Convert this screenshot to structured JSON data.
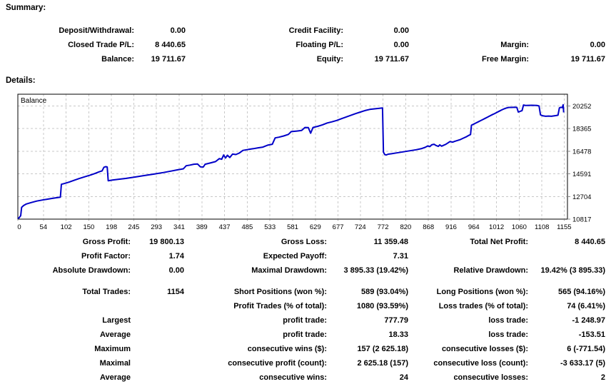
{
  "summary": {
    "heading": "Summary:",
    "rows": [
      {
        "c1l": "Deposit/Withdrawal:",
        "c1v": "0.00",
        "c2l": "Credit Facility:",
        "c2v": "0.00",
        "c3l": "",
        "c3v": ""
      },
      {
        "c1l": "Closed Trade P/L:",
        "c1v": "8 440.65",
        "c2l": "Floating P/L:",
        "c2v": "0.00",
        "c3l": "Margin:",
        "c3v": "0.00"
      },
      {
        "c1l": "Balance:",
        "c1v": "19 711.67",
        "c2l": "Equity:",
        "c2v": "19 711.67",
        "c3l": "Free Margin:",
        "c3v": "19 711.67"
      }
    ]
  },
  "details": {
    "heading": "Details:",
    "stats1": [
      {
        "c1l": "Gross Profit:",
        "c1v": "19 800.13",
        "c2l": "Gross Loss:",
        "c2v": "11 359.48",
        "c3l": "Total Net Profit:",
        "c3v": "8 440.65"
      },
      {
        "c1l": "Profit Factor:",
        "c1v": "1.74",
        "c2l": "Expected Payoff:",
        "c2v": "7.31",
        "c3l": "",
        "c3v": ""
      },
      {
        "c1l": "Absolute Drawdown:",
        "c1v": "0.00",
        "c2l": "Maximal Drawdown:",
        "c2v": "3 895.33 (19.42%)",
        "c3l": "Relative Drawdown:",
        "c3v": "19.42% (3 895.33)"
      }
    ],
    "stats2": [
      {
        "c1l": "Total Trades:",
        "c1v": "1154",
        "c2l": "Short Positions (won %):",
        "c2v": "589 (93.04%)",
        "c3l": "Long Positions (won %):",
        "c3v": "565 (94.16%)"
      },
      {
        "c1l": "",
        "c1v": "",
        "c2l": "Profit Trades (% of total):",
        "c2v": "1080 (93.59%)",
        "c3l": "Loss trades (% of total):",
        "c3v": "74 (6.41%)"
      },
      {
        "c1l": "Largest",
        "c1v": "",
        "c2l": "profit trade:",
        "c2v": "777.79",
        "c3l": "loss trade:",
        "c3v": "-1 248.97"
      },
      {
        "c1l": "Average",
        "c1v": "",
        "c2l": "profit trade:",
        "c2v": "18.33",
        "c3l": "loss trade:",
        "c3v": "-153.51"
      },
      {
        "c1l": "Maximum",
        "c1v": "",
        "c2l": "consecutive wins ($):",
        "c2v": "157 (2 625.18)",
        "c3l": "consecutive losses ($):",
        "c3v": "6 (-771.54)"
      },
      {
        "c1l": "Maximal",
        "c1v": "",
        "c2l": "consecutive profit (count):",
        "c2v": "2 625.18 (157)",
        "c3l": "consecutive loss (count):",
        "c3v": "-3 633.17 (5)"
      },
      {
        "c1l": "Average",
        "c1v": "",
        "c2l": "consecutive wins:",
        "c2v": "24",
        "c3l": "consecutive losses:",
        "c3v": "2"
      }
    ]
  },
  "chart_data": {
    "type": "line",
    "title": "Balance",
    "legend_label": "Balance",
    "xlabel": "",
    "ylabel": "",
    "xlim": [
      0,
      1162
    ],
    "ylim": [
      10817,
      21230
    ],
    "x_ticks": [
      0,
      54,
      102,
      150,
      198,
      245,
      293,
      341,
      389,
      437,
      485,
      533,
      581,
      629,
      677,
      724,
      772,
      820,
      868,
      916,
      964,
      1012,
      1060,
      1108,
      1155
    ],
    "y_ticks": [
      20252,
      18365,
      16478,
      14591,
      12704,
      10817
    ],
    "grid": "dashed",
    "colors": {
      "line": "#0000C8",
      "grid": "#c8c8c8",
      "border": "#000000",
      "text": "#000000"
    },
    "series": [
      {
        "name": "Balance",
        "points": [
          [
            0,
            10850
          ],
          [
            3,
            10950
          ],
          [
            6,
            11100
          ],
          [
            8,
            11800
          ],
          [
            12,
            11950
          ],
          [
            18,
            12080
          ],
          [
            28,
            12200
          ],
          [
            40,
            12320
          ],
          [
            52,
            12410
          ],
          [
            62,
            12480
          ],
          [
            72,
            12540
          ],
          [
            82,
            12600
          ],
          [
            90,
            12650
          ],
          [
            92,
            13720
          ],
          [
            98,
            13780
          ],
          [
            108,
            13900
          ],
          [
            118,
            14040
          ],
          [
            130,
            14200
          ],
          [
            142,
            14350
          ],
          [
            152,
            14470
          ],
          [
            163,
            14620
          ],
          [
            172,
            14760
          ],
          [
            178,
            14840
          ],
          [
            182,
            15140
          ],
          [
            186,
            15190
          ],
          [
            189,
            15160
          ],
          [
            191,
            14020
          ],
          [
            200,
            14070
          ],
          [
            212,
            14130
          ],
          [
            228,
            14210
          ],
          [
            248,
            14330
          ],
          [
            268,
            14450
          ],
          [
            288,
            14570
          ],
          [
            308,
            14700
          ],
          [
            324,
            14820
          ],
          [
            338,
            14930
          ],
          [
            350,
            15010
          ],
          [
            356,
            15270
          ],
          [
            364,
            15320
          ],
          [
            372,
            15390
          ],
          [
            380,
            15410
          ],
          [
            386,
            15170
          ],
          [
            392,
            15160
          ],
          [
            396,
            15390
          ],
          [
            408,
            15510
          ],
          [
            418,
            15610
          ],
          [
            426,
            15860
          ],
          [
            431,
            15810
          ],
          [
            435,
            16160
          ],
          [
            439,
            15910
          ],
          [
            443,
            16140
          ],
          [
            448,
            15950
          ],
          [
            454,
            16240
          ],
          [
            461,
            16200
          ],
          [
            468,
            16320
          ],
          [
            476,
            16550
          ],
          [
            488,
            16630
          ],
          [
            498,
            16690
          ],
          [
            508,
            16760
          ],
          [
            518,
            16820
          ],
          [
            528,
            16980
          ],
          [
            538,
            17060
          ],
          [
            544,
            17590
          ],
          [
            552,
            17650
          ],
          [
            562,
            17750
          ],
          [
            572,
            17880
          ],
          [
            578,
            18110
          ],
          [
            590,
            18160
          ],
          [
            600,
            18210
          ],
          [
            607,
            18460
          ],
          [
            614,
            18450
          ],
          [
            619,
            17980
          ],
          [
            624,
            18460
          ],
          [
            634,
            18550
          ],
          [
            644,
            18680
          ],
          [
            654,
            18830
          ],
          [
            664,
            18930
          ],
          [
            674,
            19040
          ],
          [
            684,
            19190
          ],
          [
            694,
            19330
          ],
          [
            704,
            19470
          ],
          [
            714,
            19610
          ],
          [
            724,
            19740
          ],
          [
            734,
            19870
          ],
          [
            744,
            19960
          ],
          [
            754,
            20010
          ],
          [
            764,
            20050
          ],
          [
            771,
            20090
          ],
          [
            773,
            16400
          ],
          [
            776,
            16190
          ],
          [
            779,
            16164
          ],
          [
            783,
            16230
          ],
          [
            790,
            16270
          ],
          [
            800,
            16330
          ],
          [
            814,
            16420
          ],
          [
            828,
            16510
          ],
          [
            842,
            16600
          ],
          [
            854,
            16700
          ],
          [
            861,
            16800
          ],
          [
            867,
            16920
          ],
          [
            871,
            16860
          ],
          [
            875,
            17010
          ],
          [
            880,
            17060
          ],
          [
            884,
            16960
          ],
          [
            889,
            16880
          ],
          [
            892,
            17010
          ],
          [
            896,
            16900
          ],
          [
            900,
            16970
          ],
          [
            905,
            17060
          ],
          [
            910,
            17190
          ],
          [
            914,
            17290
          ],
          [
            919,
            17230
          ],
          [
            924,
            17310
          ],
          [
            930,
            17380
          ],
          [
            936,
            17460
          ],
          [
            942,
            17570
          ],
          [
            948,
            17680
          ],
          [
            953,
            17790
          ],
          [
            957,
            17870
          ],
          [
            959,
            18650
          ],
          [
            963,
            18720
          ],
          [
            968,
            18820
          ],
          [
            973,
            18920
          ],
          [
            978,
            19020
          ],
          [
            983,
            19120
          ],
          [
            988,
            19220
          ],
          [
            993,
            19320
          ],
          [
            998,
            19420
          ],
          [
            1003,
            19520
          ],
          [
            1008,
            19620
          ],
          [
            1013,
            19720
          ],
          [
            1018,
            19820
          ],
          [
            1023,
            19920
          ],
          [
            1028,
            20010
          ],
          [
            1033,
            20080
          ],
          [
            1038,
            20130
          ],
          [
            1044,
            20130
          ],
          [
            1050,
            20140
          ],
          [
            1055,
            20130
          ],
          [
            1058,
            19740
          ],
          [
            1062,
            19800
          ],
          [
            1066,
            19860
          ],
          [
            1069,
            20330
          ],
          [
            1074,
            20290
          ],
          [
            1080,
            20300
          ],
          [
            1086,
            20310
          ],
          [
            1092,
            20300
          ],
          [
            1098,
            20290
          ],
          [
            1102,
            20250
          ],
          [
            1105,
            19510
          ],
          [
            1110,
            19430
          ],
          [
            1116,
            19390
          ],
          [
            1122,
            19410
          ],
          [
            1128,
            19390
          ],
          [
            1133,
            19420
          ],
          [
            1138,
            19450
          ],
          [
            1142,
            19480
          ],
          [
            1145,
            20090
          ],
          [
            1148,
            20140
          ],
          [
            1151,
            20110
          ],
          [
            1153,
            20352
          ],
          [
            1154,
            19712
          ]
        ]
      }
    ]
  }
}
